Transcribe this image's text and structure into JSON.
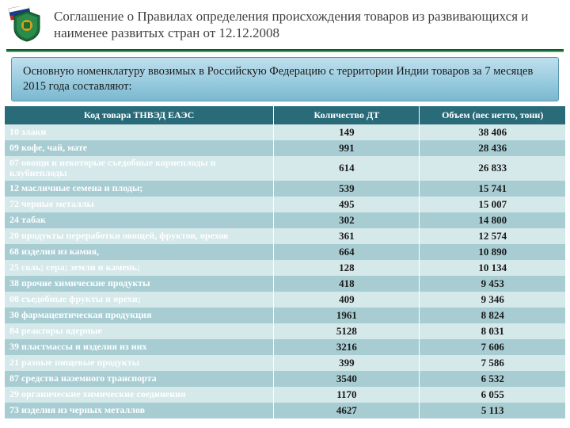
{
  "header": {
    "title": "Соглашение о Правилах определения происхождения товаров из развивающихся и наименее развитых стран от 12.12.2008"
  },
  "banner": {
    "text": "Основную номенклатуру ввозимых в Российскую Федерацию с территории Индии товаров за 7 месяцев 2015 года составляют:"
  },
  "table": {
    "columns": [
      "Код товара ТНВЭД ЕАЭС",
      "Количество ДТ",
      "Объем (вес нетто, тонн)"
    ],
    "header_bg": "#2a6b7a",
    "header_color": "#ffffff",
    "row_light_bg": "#d5e8ea",
    "row_dark_bg": "#a7cdd3",
    "name_text_color": "#ffffff",
    "num_text_color": "#1a1a1a",
    "rows": [
      {
        "name": "10 злаки",
        "qty": "149",
        "vol": "38 406"
      },
      {
        "name": "09 кофе, чай, мате",
        "qty": "991",
        "vol": "28 436"
      },
      {
        "name": "07 овощи и некоторые съедобные корнеплоды и клубнеплоды",
        "qty": "614",
        "vol": "26 833"
      },
      {
        "name": "12 масличные семена и плоды;",
        "qty": "539",
        "vol": "15 741"
      },
      {
        "name": "72 черные металлы",
        "qty": "495",
        "vol": "15 007"
      },
      {
        "name": "24 табак",
        "qty": "302",
        "vol": "14 800"
      },
      {
        "name": "20 продукты переработки овощей, фруктов, орехов",
        "qty": "361",
        "vol": "12 574"
      },
      {
        "name": "68 изделия из камня,",
        "qty": "664",
        "vol": "10 890"
      },
      {
        "name": "25 соль; сера; земли и камень;",
        "qty": "128",
        "vol": "10 134"
      },
      {
        "name": "38 прочие химические продукты",
        "qty": "418",
        "vol": "9 453"
      },
      {
        "name": "08 съедобные фрукты и орехи;",
        "qty": "409",
        "vol": "9 346"
      },
      {
        "name": "30 фармацевтическая продукция",
        "qty": "1961",
        "vol": "8 824"
      },
      {
        "name": "84 реакторы ядерные",
        "qty": "5128",
        "vol": "8 031"
      },
      {
        "name": "39 пластмассы и изделия из них",
        "qty": "3216",
        "vol": "7 606"
      },
      {
        "name": "21 разные пищевые продукты",
        "qty": "399",
        "vol": "7 586"
      },
      {
        "name": "87 средства наземного транспорта",
        "qty": "3540",
        "vol": "6 532"
      },
      {
        "name": "29 органические химические соединения",
        "qty": "1170",
        "vol": "6 055"
      },
      {
        "name": "73 изделия из черных металлов",
        "qty": "4627",
        "vol": "5 113"
      }
    ]
  }
}
